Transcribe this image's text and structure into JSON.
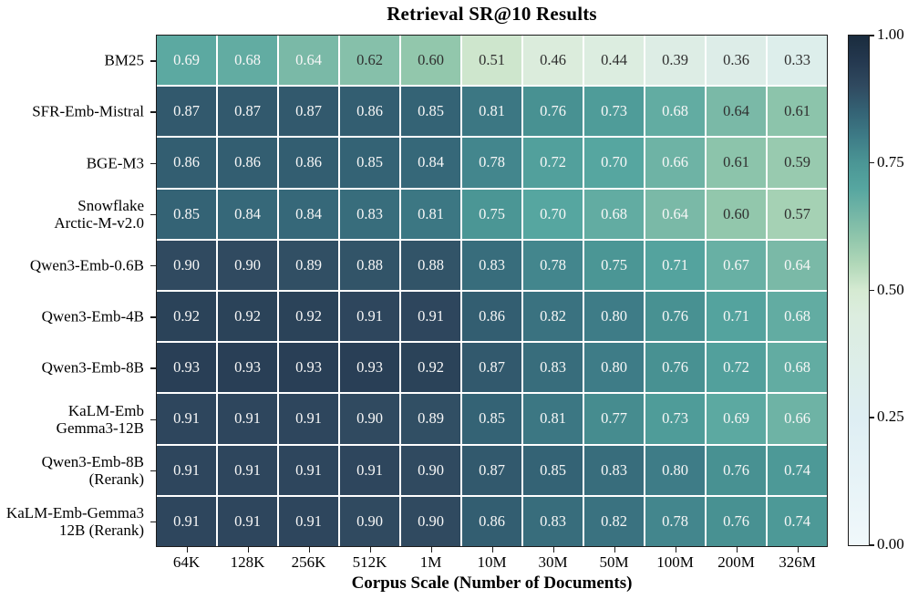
{
  "chart_data": {
    "type": "heatmap",
    "title": "Retrieval SR@10 Results",
    "xlabel": "Corpus Scale (Number of Documents)",
    "categories": [
      "64K",
      "128K",
      "256K",
      "512K",
      "1M",
      "10M",
      "30M",
      "50M",
      "100M",
      "200M",
      "326M"
    ],
    "rows": [
      {
        "label_lines": [
          "BM25"
        ],
        "values": [
          0.69,
          0.68,
          0.64,
          0.62,
          0.6,
          0.51,
          0.46,
          0.44,
          0.39,
          0.36,
          0.33
        ]
      },
      {
        "label_lines": [
          "SFR-Emb-Mistral"
        ],
        "values": [
          0.87,
          0.87,
          0.87,
          0.86,
          0.85,
          0.81,
          0.76,
          0.73,
          0.68,
          0.64,
          0.61
        ]
      },
      {
        "label_lines": [
          "BGE-M3"
        ],
        "values": [
          0.86,
          0.86,
          0.86,
          0.85,
          0.84,
          0.78,
          0.72,
          0.7,
          0.66,
          0.61,
          0.59
        ]
      },
      {
        "label_lines": [
          "Snowflake",
          "Arctic-M-v2.0"
        ],
        "values": [
          0.85,
          0.84,
          0.84,
          0.83,
          0.81,
          0.75,
          0.7,
          0.68,
          0.64,
          0.6,
          0.57
        ]
      },
      {
        "label_lines": [
          "Qwen3-Emb-0.6B"
        ],
        "values": [
          0.9,
          0.9,
          0.89,
          0.88,
          0.88,
          0.83,
          0.78,
          0.75,
          0.71,
          0.67,
          0.64
        ]
      },
      {
        "label_lines": [
          "Qwen3-Emb-4B"
        ],
        "values": [
          0.92,
          0.92,
          0.92,
          0.91,
          0.91,
          0.86,
          0.82,
          0.8,
          0.76,
          0.71,
          0.68
        ]
      },
      {
        "label_lines": [
          "Qwen3-Emb-8B"
        ],
        "values": [
          0.93,
          0.93,
          0.93,
          0.93,
          0.92,
          0.87,
          0.83,
          0.8,
          0.76,
          0.72,
          0.68
        ]
      },
      {
        "label_lines": [
          "KaLM-Emb",
          "Gemma3-12B"
        ],
        "values": [
          0.91,
          0.91,
          0.91,
          0.9,
          0.89,
          0.85,
          0.81,
          0.77,
          0.73,
          0.69,
          0.66
        ]
      },
      {
        "label_lines": [
          "Qwen3-Emb-8B",
          "(Rerank)"
        ],
        "values": [
          0.91,
          0.91,
          0.91,
          0.91,
          0.9,
          0.87,
          0.85,
          0.83,
          0.8,
          0.76,
          0.74
        ]
      },
      {
        "label_lines": [
          "KaLM-Emb-Gemma3",
          "12B (Rerank)"
        ],
        "values": [
          0.91,
          0.91,
          0.91,
          0.9,
          0.9,
          0.86,
          0.83,
          0.82,
          0.78,
          0.76,
          0.74
        ]
      }
    ],
    "value_decimals": 2,
    "grid": "white gridlines between cells",
    "legend_position": "right colorbar",
    "colorbar": {
      "min": 0.0,
      "max": 1.0,
      "tick_labels": [
        "1.00",
        "0.75",
        "0.50",
        "0.25",
        "0.00"
      ],
      "tick_values": [
        1.0,
        0.75,
        0.5,
        0.25,
        0.0
      ]
    },
    "colormap_stops": [
      [
        0.0,
        "#f0f8fb"
      ],
      [
        0.25,
        "#deeef3"
      ],
      [
        0.45,
        "#dceddf"
      ],
      [
        0.5,
        "#d5ead2"
      ],
      [
        0.55,
        "#b2d8b9"
      ],
      [
        0.6,
        "#92c7ac"
      ],
      [
        0.65,
        "#74b6a6"
      ],
      [
        0.7,
        "#56a6a0"
      ],
      [
        0.75,
        "#4b9695"
      ],
      [
        0.8,
        "#3e7c87"
      ],
      [
        0.85,
        "#346375"
      ],
      [
        0.9,
        "#304a60"
      ],
      [
        0.95,
        "#24384f"
      ],
      [
        1.0,
        "#1a2c3e"
      ]
    ],
    "annotation_colors": {
      "white_text": "#f7f7f7",
      "dark_text": "#2f2f2f",
      "white_text_min_value": 0.64,
      "dark_text_exception_cells_row_col": [
        [
          1,
          9
        ]
      ]
    }
  }
}
